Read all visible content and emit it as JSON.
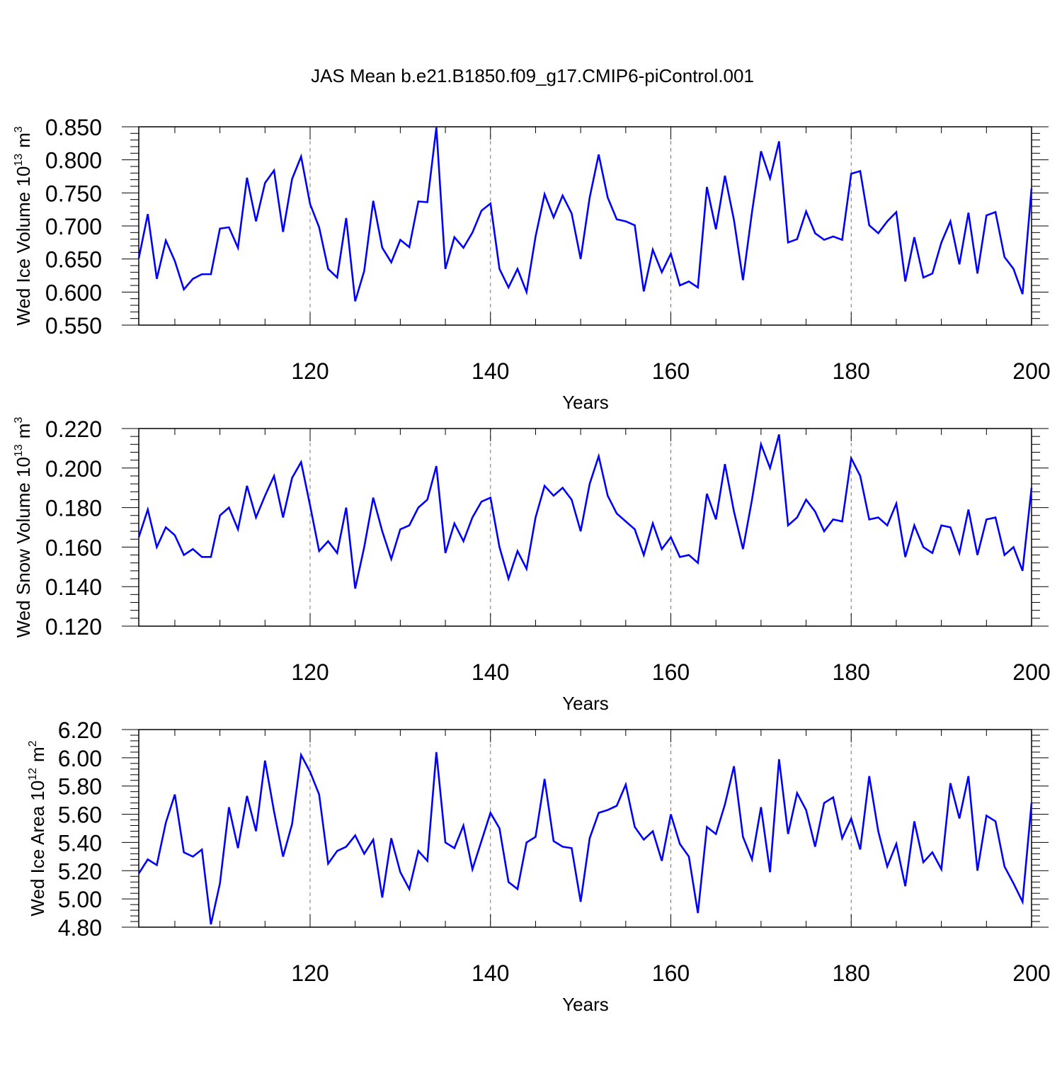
{
  "figure_title": "JAS Mean b.e21.B1850.f09_g17.CMIP6-piControl.001",
  "colors": {
    "line": "#0000ff",
    "axis": "#000000",
    "grid": "#777777"
  },
  "chart_data": [
    {
      "type": "line",
      "ylabel": "Wed Ice Volume 10",
      "ylabel_sup": "13",
      "ylabel_unit": "m",
      "ylabel_unit_sup": "3",
      "xlabel": "Years",
      "xlim": [
        101,
        200
      ],
      "ylim": [
        0.55,
        0.85
      ],
      "y_ticks": [
        0.55,
        0.6,
        0.65,
        0.7,
        0.75,
        0.8,
        0.85
      ],
      "y_tick_labels": [
        "0.550",
        "0.600",
        "0.650",
        "0.700",
        "0.750",
        "0.800",
        "0.850"
      ],
      "x_ticks": [
        120,
        140,
        160,
        180,
        200
      ],
      "x_tick_labels": [
        "120",
        "140",
        "160",
        "180",
        "200"
      ],
      "vgrid": [
        120,
        140,
        160,
        180
      ],
      "x_start": 101,
      "values": [
        0.651,
        0.718,
        0.62,
        0.678,
        0.647,
        0.604,
        0.62,
        0.627,
        0.627,
        0.696,
        0.698,
        0.667,
        0.773,
        0.707,
        0.765,
        0.784,
        0.691,
        0.771,
        0.805,
        0.733,
        0.698,
        0.635,
        0.622,
        0.712,
        0.586,
        0.632,
        0.738,
        0.667,
        0.645,
        0.679,
        0.668,
        0.737,
        0.736,
        0.849,
        0.635,
        0.683,
        0.667,
        0.69,
        0.723,
        0.734,
        0.635,
        0.607,
        0.635,
        0.6,
        0.684,
        0.748,
        0.713,
        0.746,
        0.719,
        0.65,
        0.743,
        0.808,
        0.743,
        0.71,
        0.707,
        0.701,
        0.601,
        0.664,
        0.63,
        0.658,
        0.61,
        0.616,
        0.607,
        0.759,
        0.695,
        0.776,
        0.709,
        0.618,
        0.721,
        0.813,
        0.772,
        0.828,
        0.675,
        0.68,
        0.722,
        0.689,
        0.679,
        0.684,
        0.679,
        0.779,
        0.783,
        0.701,
        0.689,
        0.707,
        0.721,
        0.616,
        0.683,
        0.622,
        0.628,
        0.675,
        0.707,
        0.642,
        0.72,
        0.628,
        0.716,
        0.721,
        0.653,
        0.635,
        0.597,
        0.757
      ]
    },
    {
      "type": "line",
      "ylabel": "Wed Snow Volume 10",
      "ylabel_sup": "13",
      "ylabel_unit": "m",
      "ylabel_unit_sup": "3",
      "xlabel": "Years",
      "xlim": [
        101,
        200
      ],
      "ylim": [
        0.12,
        0.22
      ],
      "y_ticks": [
        0.12,
        0.14,
        0.16,
        0.18,
        0.2,
        0.22
      ],
      "y_tick_labels": [
        "0.120",
        "0.140",
        "0.160",
        "0.180",
        "0.200",
        "0.220"
      ],
      "x_ticks": [
        120,
        140,
        160,
        180,
        200
      ],
      "x_tick_labels": [
        "120",
        "140",
        "160",
        "180",
        "200"
      ],
      "vgrid": [
        120,
        140,
        160,
        180
      ],
      "x_start": 101,
      "values": [
        0.165,
        0.179,
        0.16,
        0.17,
        0.166,
        0.156,
        0.159,
        0.155,
        0.155,
        0.176,
        0.18,
        0.169,
        0.191,
        0.175,
        0.186,
        0.196,
        0.175,
        0.195,
        0.203,
        0.181,
        0.158,
        0.163,
        0.157,
        0.18,
        0.139,
        0.16,
        0.185,
        0.168,
        0.154,
        0.169,
        0.171,
        0.18,
        0.184,
        0.201,
        0.157,
        0.172,
        0.163,
        0.175,
        0.183,
        0.185,
        0.16,
        0.144,
        0.158,
        0.149,
        0.175,
        0.191,
        0.186,
        0.19,
        0.184,
        0.168,
        0.192,
        0.206,
        0.186,
        0.177,
        0.173,
        0.169,
        0.156,
        0.172,
        0.159,
        0.165,
        0.155,
        0.156,
        0.152,
        0.187,
        0.174,
        0.202,
        0.178,
        0.159,
        0.184,
        0.212,
        0.2,
        0.217,
        0.171,
        0.175,
        0.184,
        0.178,
        0.168,
        0.174,
        0.173,
        0.205,
        0.196,
        0.174,
        0.175,
        0.171,
        0.182,
        0.155,
        0.171,
        0.16,
        0.157,
        0.171,
        0.17,
        0.157,
        0.179,
        0.156,
        0.174,
        0.175,
        0.156,
        0.16,
        0.148,
        0.19
      ]
    },
    {
      "type": "line",
      "ylabel": "Wed Ice Area 10",
      "ylabel_sup": "12",
      "ylabel_unit": "m",
      "ylabel_unit_sup": "2",
      "xlabel": "Years",
      "xlim": [
        101,
        200
      ],
      "ylim": [
        4.8,
        6.2
      ],
      "y_ticks": [
        4.8,
        5.0,
        5.2,
        5.4,
        5.6,
        5.8,
        6.0,
        6.2
      ],
      "y_tick_labels": [
        "4.80",
        "5.00",
        "5.20",
        "5.40",
        "5.60",
        "5.80",
        "6.00",
        "6.20"
      ],
      "x_ticks": [
        120,
        140,
        160,
        180,
        200
      ],
      "x_tick_labels": [
        "120",
        "140",
        "160",
        "180",
        "200"
      ],
      "vgrid": [
        120,
        140,
        160,
        180
      ],
      "x_start": 101,
      "values": [
        5.18,
        5.28,
        5.24,
        5.54,
        5.74,
        5.33,
        5.3,
        5.35,
        4.82,
        5.11,
        5.65,
        5.36,
        5.73,
        5.48,
        5.98,
        5.62,
        5.3,
        5.53,
        6.02,
        5.9,
        5.74,
        5.25,
        5.34,
        5.37,
        5.45,
        5.32,
        5.42,
        5.01,
        5.43,
        5.19,
        5.07,
        5.34,
        5.27,
        6.04,
        5.4,
        5.36,
        5.52,
        5.21,
        5.41,
        5.61,
        5.5,
        5.12,
        5.07,
        5.4,
        5.44,
        5.85,
        5.41,
        5.37,
        5.36,
        4.98,
        5.43,
        5.61,
        5.63,
        5.66,
        5.81,
        5.51,
        5.42,
        5.48,
        5.27,
        5.6,
        5.39,
        5.3,
        4.9,
        5.51,
        5.46,
        5.67,
        5.94,
        5.44,
        5.28,
        5.65,
        5.19,
        5.99,
        5.46,
        5.75,
        5.63,
        5.37,
        5.68,
        5.72,
        5.43,
        5.57,
        5.35,
        5.87,
        5.48,
        5.23,
        5.39,
        5.09,
        5.55,
        5.26,
        5.33,
        5.21,
        5.82,
        5.57,
        5.87,
        5.2,
        5.59,
        5.55,
        5.23,
        5.11,
        4.98,
        5.68
      ]
    }
  ]
}
